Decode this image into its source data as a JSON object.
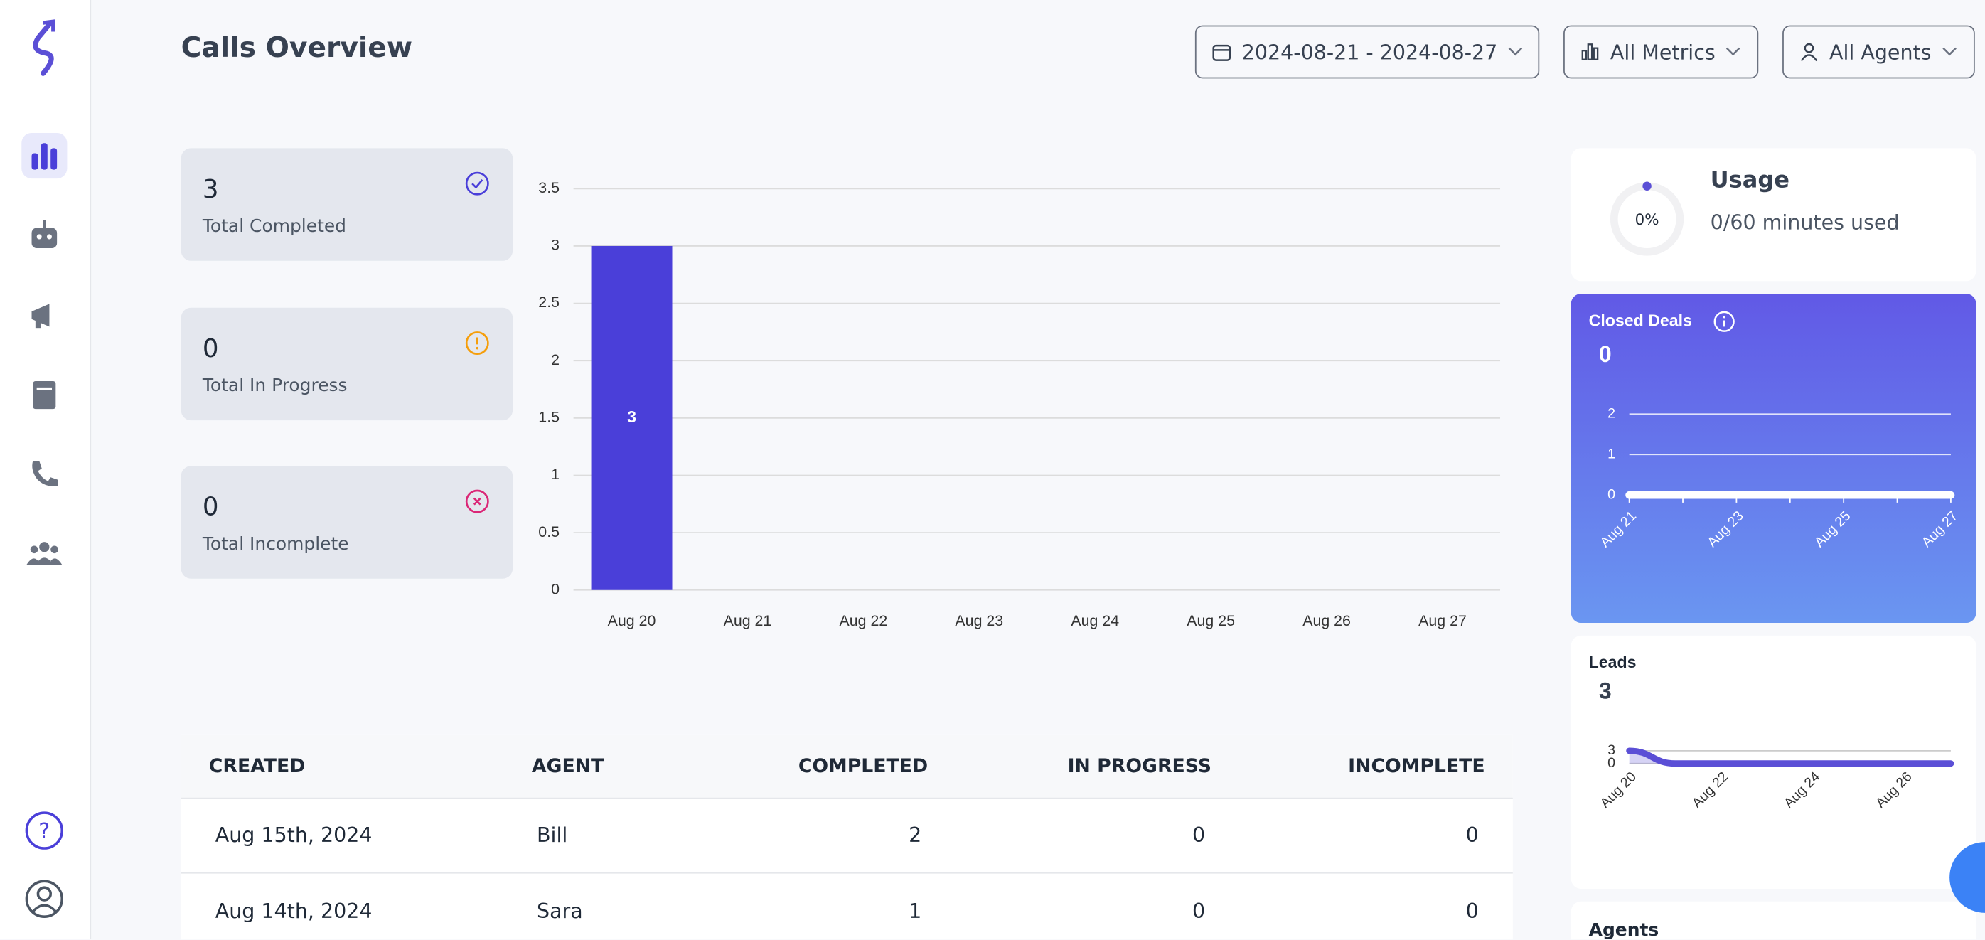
{
  "header": {
    "title": "Calls Overview",
    "filters": [
      "2024-08-21 - 2024-08-27",
      "All Metrics",
      "All Agents"
    ]
  },
  "stats": [
    {
      "value": 3,
      "label": "Total Completed"
    },
    {
      "value": 0,
      "label": "Total In Progress"
    },
    {
      "value": 0,
      "label": "Total Incomplete"
    }
  ],
  "usage": {
    "title": "Usage",
    "percent": "0%",
    "detail": "0/60 minutes used"
  },
  "table": {
    "columns": [
      "CREATED",
      "AGENT",
      "COMPLETED",
      "IN PROGRESS",
      "INCOMPLETE"
    ],
    "rows": [
      [
        "Aug 15th, 2024",
        "Bill",
        2,
        0,
        0
      ],
      [
        "Aug 14th, 2024",
        "Sara",
        1,
        0,
        0
      ]
    ]
  },
  "agents_title": "Agents",
  "chart_data": [
    {
      "type": "bar",
      "categories": [
        "Aug 20",
        "Aug 21",
        "Aug 22",
        "Aug 23",
        "Aug 24",
        "Aug 25",
        "Aug 26",
        "Aug 27"
      ],
      "values": [
        3,
        0,
        0,
        0,
        0,
        0,
        0,
        0
      ],
      "color": "#4a3fd9",
      "ylim": [
        0,
        3.5
      ],
      "yticks": [
        0,
        0.5,
        1,
        1.5,
        2,
        2.5,
        3,
        3.5
      ],
      "grid": true
    },
    {
      "type": "line",
      "title": "Closed Deals",
      "total": 0,
      "categories": [
        "Aug 21",
        null,
        "Aug 23",
        null,
        "Aug 25",
        null,
        "Aug 27"
      ],
      "values": [
        0,
        0,
        0,
        0,
        0,
        0,
        0
      ],
      "color": "#ffffff",
      "ylim": [
        0,
        2
      ],
      "yticks": [
        0,
        1,
        2
      ],
      "grid": true
    },
    {
      "type": "line",
      "title": "Leads",
      "total": 3,
      "categories": [
        "Aug 20",
        null,
        "Aug 22",
        null,
        "Aug 24",
        null,
        "Aug 26",
        null
      ],
      "values": [
        3,
        0,
        0,
        0,
        0,
        0,
        0,
        0
      ],
      "color": "#5b4fd6",
      "ylim": [
        0,
        3
      ],
      "yticks": [
        0,
        3
      ],
      "grid": true
    }
  ]
}
